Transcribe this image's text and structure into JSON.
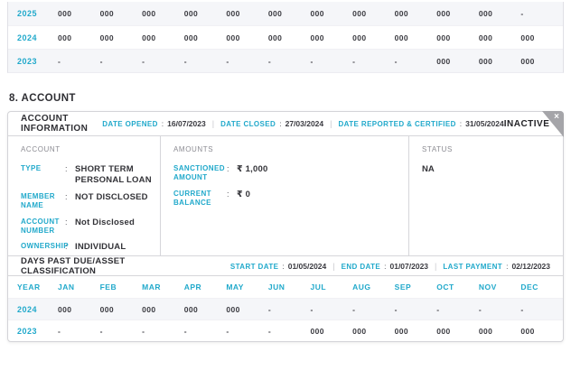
{
  "punct": {
    "colon": ":",
    "pipe": "|"
  },
  "colors": {
    "accent_teal": "#21a9cb",
    "row_alt": "#f5f6f9",
    "ribbon_gray": "#a5a5a9",
    "text_dark": "#2e2e33"
  },
  "top_table": {
    "rows": [
      {
        "year": "2025",
        "values": [
          "000",
          "000",
          "000",
          "000",
          "000",
          "000",
          "000",
          "000",
          "000",
          "000",
          "000",
          "-"
        ]
      },
      {
        "year": "2024",
        "values": [
          "000",
          "000",
          "000",
          "000",
          "000",
          "000",
          "000",
          "000",
          "000",
          "000",
          "000",
          "000"
        ]
      },
      {
        "year": "2023",
        "values": [
          "-",
          "-",
          "-",
          "-",
          "-",
          "-",
          "-",
          "-",
          "-",
          "000",
          "000",
          "000"
        ]
      }
    ]
  },
  "section_heading": "8. ACCOUNT",
  "panel": {
    "header": {
      "title": "ACCOUNT INFORMATION",
      "dates": [
        {
          "label": "DATE OPENED",
          "value": "16/07/2023"
        },
        {
          "label": "DATE CLOSED",
          "value": "27/03/2024"
        },
        {
          "label": "DATE REPORTED & CERTIFIED",
          "value": "31/05/2024"
        }
      ],
      "status_badge": "INACTIVE",
      "close_icon": "×"
    },
    "account": {
      "header": "ACCOUNT",
      "fields": [
        {
          "label": "TYPE",
          "value": "SHORT TERM PERSONAL LOAN"
        },
        {
          "label": "MEMBER NAME",
          "value": "NOT DISCLOSED"
        },
        {
          "label": "ACCOUNT NUMBER",
          "value": "Not Disclosed"
        },
        {
          "label": "OWNERSHIP",
          "value": "INDIVIDUAL"
        }
      ]
    },
    "amounts": {
      "header": "AMOUNTS",
      "fields": [
        {
          "label": "SANCTIONED AMOUNT",
          "value": "₹ 1,000"
        },
        {
          "label": "CURRENT BALANCE",
          "value": "₹ 0"
        }
      ]
    },
    "status": {
      "header": "STATUS",
      "value": "NA"
    },
    "dpd": {
      "title": "DAYS PAST DUE/ASSET CLASSIFICATION",
      "dates": [
        {
          "label": "START DATE",
          "value": "01/05/2024"
        },
        {
          "label": "END DATE",
          "value": "01/07/2023"
        },
        {
          "label": "LAST PAYMENT",
          "value": "02/12/2023"
        }
      ],
      "table": {
        "headers": [
          "YEAR",
          "JAN",
          "FEB",
          "MAR",
          "APR",
          "MAY",
          "JUN",
          "JUL",
          "AUG",
          "SEP",
          "OCT",
          "NOV",
          "DEC"
        ],
        "rows": [
          {
            "year": "2024",
            "values": [
              "000",
              "000",
              "000",
              "000",
              "000",
              "-",
              "-",
              "-",
              "-",
              "-",
              "-",
              "-"
            ]
          },
          {
            "year": "2023",
            "values": [
              "-",
              "-",
              "-",
              "-",
              "-",
              "-",
              "000",
              "000",
              "000",
              "000",
              "000",
              "000"
            ]
          }
        ]
      }
    }
  }
}
